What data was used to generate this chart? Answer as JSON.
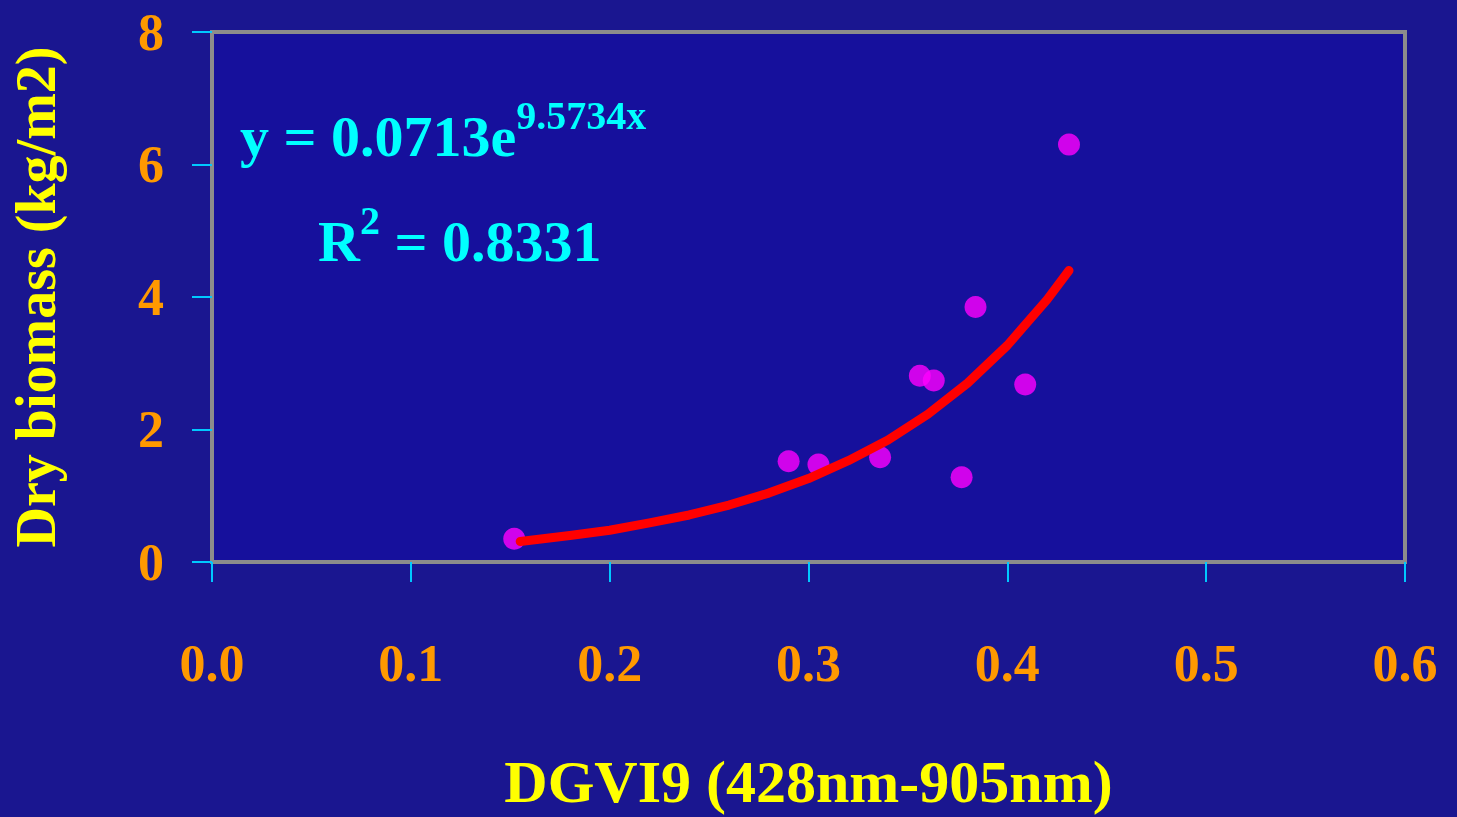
{
  "chart_data": {
    "type": "scatter",
    "xlabel": "DGVI9 (428nm-905nm)",
    "ylabel": "Dry biomass (kg/m2)",
    "xlim": [
      0,
      0.6
    ],
    "xticks": [
      {
        "value": 0,
        "label": "0.0"
      },
      {
        "value": 0.1,
        "label": "0.1"
      },
      {
        "value": 0.2,
        "label": "0.2"
      },
      {
        "value": 0.3,
        "label": "0.3"
      },
      {
        "value": 0.4,
        "label": "0.4"
      },
      {
        "value": 0.5,
        "label": "0.5"
      },
      {
        "value": 0.6,
        "label": "0.6"
      }
    ],
    "ylim": [
      0,
      8
    ],
    "yticks": [
      0,
      2,
      4,
      6,
      8
    ],
    "marker": "circle",
    "annotations": [
      "y = 0.0713e$^{9.5734x}$",
      "R$^{2}$ = 0.8331"
    ],
    "series": [
      {
        "color": "#ff00ff",
        "x": [
          0.152,
          0.29,
          0.305,
          0.336,
          0.356,
          0.363,
          0.377,
          0.384,
          0.409,
          0.431
        ],
        "values": [
          0.35,
          1.52,
          1.47,
          1.58,
          2.81,
          2.74,
          1.28,
          3.85,
          2.68,
          6.3
        ]
      },
      {
        "type": "line",
        "color": "#ff0000",
        "marker": "none",
        "line_style": "solid",
        "x": [
          0.155,
          0.18,
          0.2,
          0.22,
          0.24,
          0.26,
          0.28,
          0.3,
          0.32,
          0.34,
          0.36,
          0.38,
          0.4,
          0.42,
          0.431
        ],
        "values": [
          0.31,
          0.4,
          0.48,
          0.59,
          0.71,
          0.86,
          1.04,
          1.26,
          1.53,
          1.84,
          2.23,
          2.7,
          3.27,
          3.96,
          4.4
        ]
      }
    ]
  }
}
